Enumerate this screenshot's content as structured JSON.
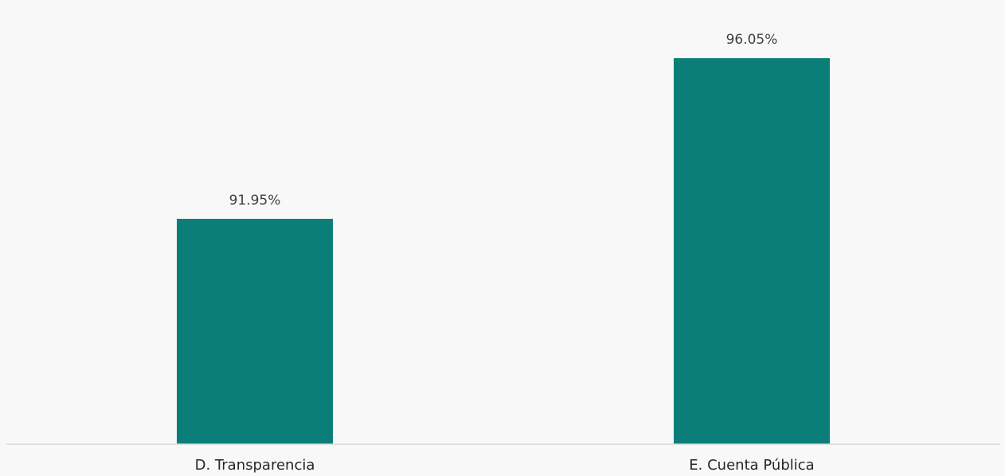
{
  "chart_data": {
    "type": "bar",
    "categories": [
      "D. Transparencia",
      "E. Cuenta Pública"
    ],
    "values": [
      91.95,
      96.05
    ],
    "data_labels": [
      "91.95%",
      "96.05%"
    ],
    "title": "",
    "xlabel": "",
    "ylabel": "",
    "ylim": [
      86.2,
      96.6
    ],
    "grid": false,
    "legend": "none",
    "colors": {
      "bar": "#0c7e79",
      "axis": "#d9d9d9",
      "background": "#f8f8f8"
    }
  }
}
